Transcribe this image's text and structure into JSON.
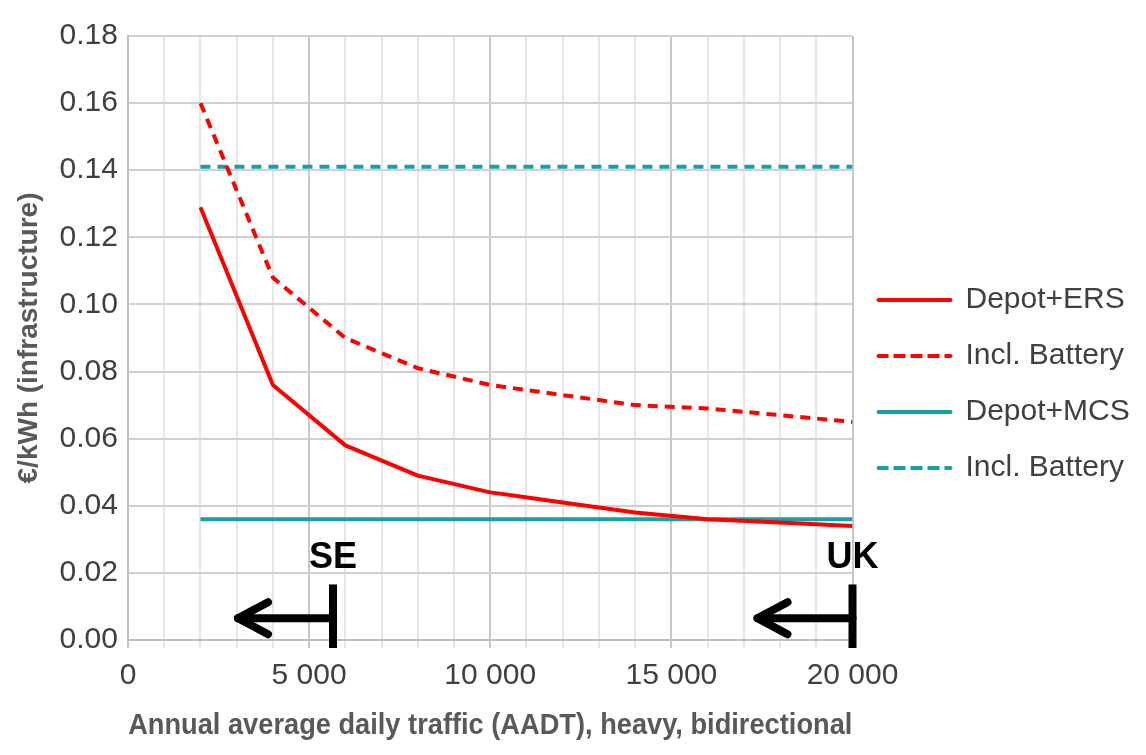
{
  "chart_data": {
    "type": "line",
    "xlabel": "Annual average daily traffic (AADT), heavy, bidirectional",
    "ylabel": "€/kWh (infrastructure)",
    "series": [
      {
        "name": "Depot+ERS",
        "color": "#ff0000",
        "line_style": "solid",
        "x": [
          2000,
          4000,
          6000,
          8000,
          10000,
          12000,
          14000,
          16000,
          18000,
          20000
        ],
        "values": [
          0.129,
          0.076,
          0.058,
          0.049,
          0.044,
          0.041,
          0.038,
          0.036,
          0.035,
          0.034
        ]
      },
      {
        "name": "Incl. Battery",
        "color": "#ff0000",
        "line_style": "dashed",
        "x": [
          2000,
          4000,
          6000,
          8000,
          10000,
          12000,
          14000,
          16000,
          18000,
          20000
        ],
        "values": [
          0.16,
          0.108,
          0.09,
          0.081,
          0.076,
          0.073,
          0.07,
          0.069,
          0.067,
          0.065
        ]
      },
      {
        "name": "Depot+MCS",
        "color": "#17a0a8",
        "line_style": "solid",
        "x": [
          2000,
          20000
        ],
        "values": [
          0.036,
          0.036
        ]
      },
      {
        "name": "Incl. Battery",
        "color": "#17a0a8",
        "line_style": "dashed",
        "x": [
          2000,
          20000
        ],
        "values": [
          0.141,
          0.141
        ]
      }
    ],
    "xlim": [
      0,
      20000
    ],
    "xticks": [
      0,
      {
        "value": 1000,
        "label": null
      },
      {
        "value": 2000,
        "label": null
      },
      {
        "value": 3000,
        "label": null
      },
      {
        "value": 4000,
        "label": null
      },
      {
        "value": 5000,
        "label": "5 000"
      },
      {
        "value": 6000,
        "label": null
      },
      {
        "value": 7000,
        "label": null
      },
      {
        "value": 8000,
        "label": null
      },
      {
        "value": 9000,
        "label": null
      },
      {
        "value": 10000,
        "label": "10 000"
      },
      {
        "value": 11000,
        "label": null
      },
      {
        "value": 12000,
        "label": null
      },
      {
        "value": 13000,
        "label": null
      },
      {
        "value": 14000,
        "label": null
      },
      {
        "value": 15000,
        "label": "15 000"
      },
      {
        "value": 16000,
        "label": null
      },
      {
        "value": 17000,
        "label": null
      },
      {
        "value": 18000,
        "label": null
      },
      {
        "value": 19000,
        "label": null
      },
      {
        "value": 20000,
        "label": "20 000"
      }
    ],
    "ylim": [
      0,
      0.18
    ],
    "yticks": [
      {
        "value": 0,
        "label": "0.00"
      },
      {
        "value": 0.02,
        "label": "0.02"
      },
      {
        "value": 0.04,
        "label": "0.04"
      },
      {
        "value": 0.06,
        "label": "0.06"
      },
      {
        "value": 0.08,
        "label": "0.08"
      },
      {
        "value": 0.1,
        "label": "0.10"
      },
      {
        "value": 0.12,
        "label": "0.12"
      },
      {
        "value": 0.14,
        "label": "0.14"
      },
      {
        "value": 0.16,
        "label": "0.16"
      },
      {
        "value": 0.18,
        "label": "0.18"
      }
    ],
    "grid": true,
    "legend": "right",
    "marker": "none",
    "annotations": [
      "SE",
      "UK"
    ]
  }
}
